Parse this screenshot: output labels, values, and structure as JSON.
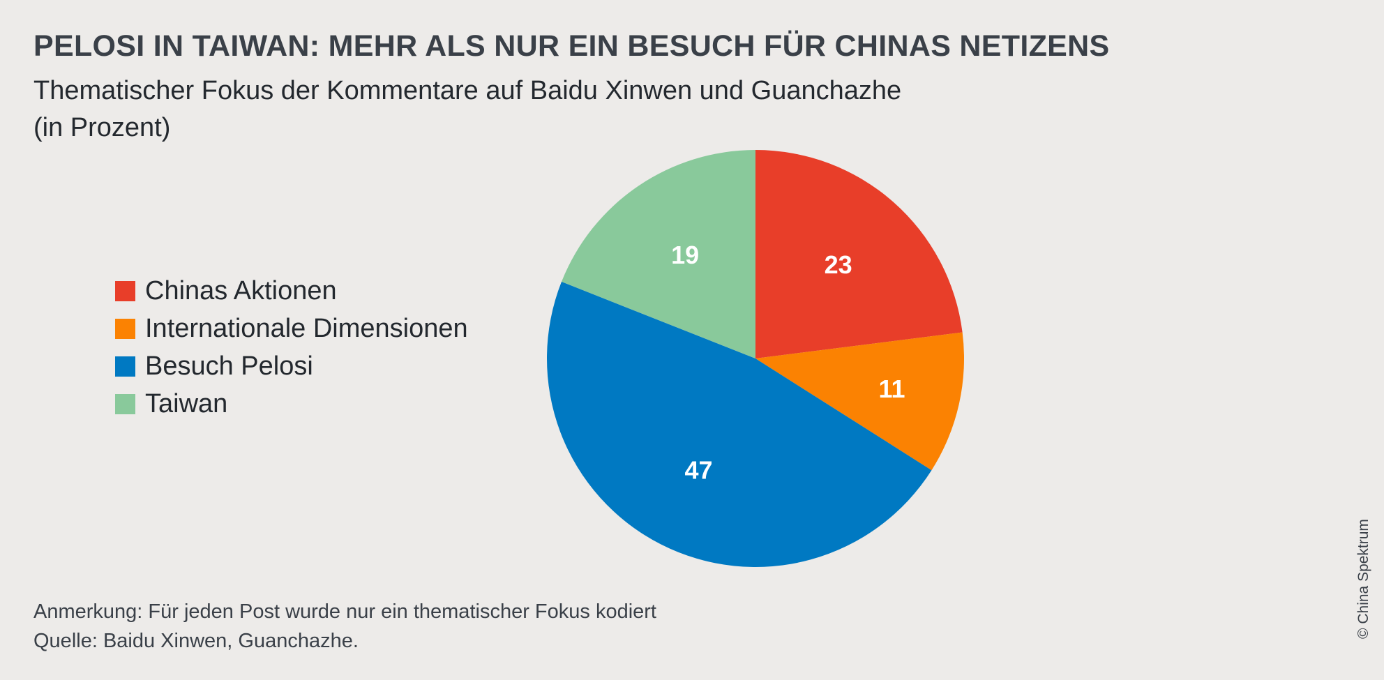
{
  "header": {
    "title": "PELOSI IN TAIWAN: MEHR ALS NUR EIN BESUCH FÜR CHINAS NETIZENS",
    "subtitle_line1": "Thematischer Fokus der Kommentare auf Baidu Xinwen und Guanchazhe",
    "subtitle_line2": "(in Prozent)"
  },
  "chart_data": {
    "type": "pie",
    "title": "PELOSI IN TAIWAN: MEHR ALS NUR EIN BESUCH FÜR CHINAS NETIZENS",
    "subtitle": "Thematischer Fokus der Kommentare auf Baidu Xinwen und Guanchazhe (in Prozent)",
    "legend_position": "left",
    "start": "top, clockwise",
    "slices": [
      {
        "label": "Chinas Aktionen",
        "value": 23,
        "color": "#e83e29"
      },
      {
        "label": "Internationale Dimensionen",
        "value": 11,
        "color": "#fb8202"
      },
      {
        "label": "Besuch Pelosi",
        "value": 47,
        "color": "#0079c2"
      },
      {
        "label": "Taiwan",
        "value": 19,
        "color": "#89c99b"
      }
    ]
  },
  "footer": {
    "note": "Anmerkung: Für jeden Post wurde nur ein thematischer Fokus kodiert",
    "source": "Quelle: Baidu Xinwen, Guanchazhe.",
    "copyright": "© China Spektrum"
  }
}
